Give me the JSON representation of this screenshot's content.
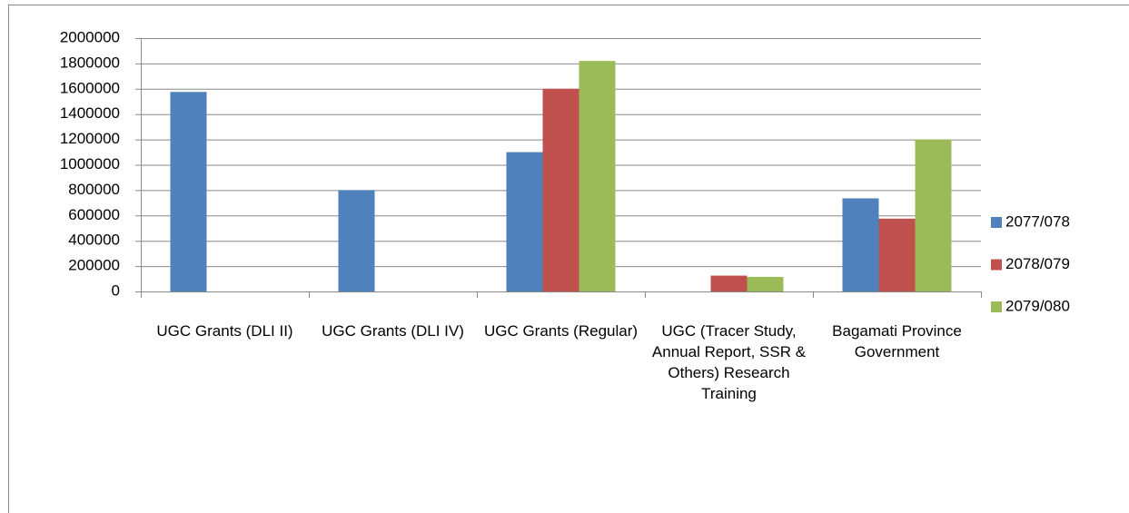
{
  "chart_data": {
    "type": "bar",
    "categories": [
      "UGC Grants (DLI II)",
      "UGC Grants (DLI IV)",
      "UGC Grants (Regular)",
      "UGC (Tracer Study, Annual Report, SSR & Others) Research Training",
      "Bagamati Province Government"
    ],
    "series": [
      {
        "name": "2077/078",
        "color": "#4f81bd",
        "values": [
          1575000,
          800000,
          1100000,
          null,
          735000
        ]
      },
      {
        "name": "2078/079",
        "color": "#c0504d",
        "values": [
          null,
          null,
          1600000,
          125000,
          575000
        ]
      },
      {
        "name": "2079/080",
        "color": "#9bbb59",
        "values": [
          null,
          null,
          1820000,
          115000,
          1200000
        ]
      }
    ],
    "ylim": [
      0,
      2000000
    ],
    "yticks": [
      0,
      200000,
      400000,
      600000,
      800000,
      1000000,
      1200000,
      1400000,
      1600000,
      1800000,
      2000000
    ],
    "grid": true,
    "legend": "right"
  }
}
